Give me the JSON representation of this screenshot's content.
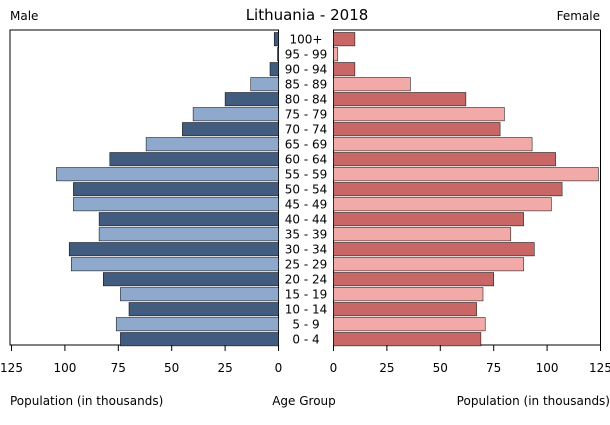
{
  "chart_data": {
    "type": "bar",
    "title": "Lithuania - 2018",
    "left_label": "Male",
    "right_label": "Female",
    "xlabel_left": "Population (in thousands)",
    "xlabel_center": "Age Group",
    "xlabel_right": "Population (in thousands)",
    "xlim": [
      0,
      125
    ],
    "xticks": [
      "125",
      "100",
      "75",
      "50",
      "25",
      "0"
    ],
    "xticks_right": [
      "0",
      "25",
      "50",
      "75",
      "100",
      "125"
    ],
    "tick_values": [
      125,
      100,
      75,
      50,
      25,
      0
    ],
    "tick_values_right": [
      0,
      25,
      50,
      75,
      100,
      125
    ],
    "categories": [
      "100+",
      "95 - 99",
      "90 - 94",
      "85 - 89",
      "80 - 84",
      "75 - 79",
      "70 - 74",
      "65 - 69",
      "60 - 64",
      "55 - 59",
      "50 - 54",
      "45 - 49",
      "40 - 44",
      "35 - 39",
      "30 - 34",
      "25 - 29",
      "20 - 24",
      "15 - 19",
      "10 - 14",
      "5 - 9",
      "0 - 4"
    ],
    "series": [
      {
        "values": [
          2,
          0.5,
          4,
          13,
          25,
          40,
          45,
          62,
          79,
          104,
          96,
          96,
          84,
          84,
          98,
          97,
          82,
          74,
          70,
          76,
          74
        ]
      },
      {
        "values": [
          10,
          2,
          10,
          36,
          62,
          80,
          78,
          93,
          104,
          124,
          107,
          102,
          89,
          83,
          94,
          89,
          75,
          70,
          67,
          71,
          69
        ]
      }
    ],
    "colors": {
      "male_dark": "#415c7f",
      "male_light": "#8ea9cc",
      "female_dark": "#c96766",
      "female_light": "#f2aaa8",
      "border": "#000000"
    }
  }
}
